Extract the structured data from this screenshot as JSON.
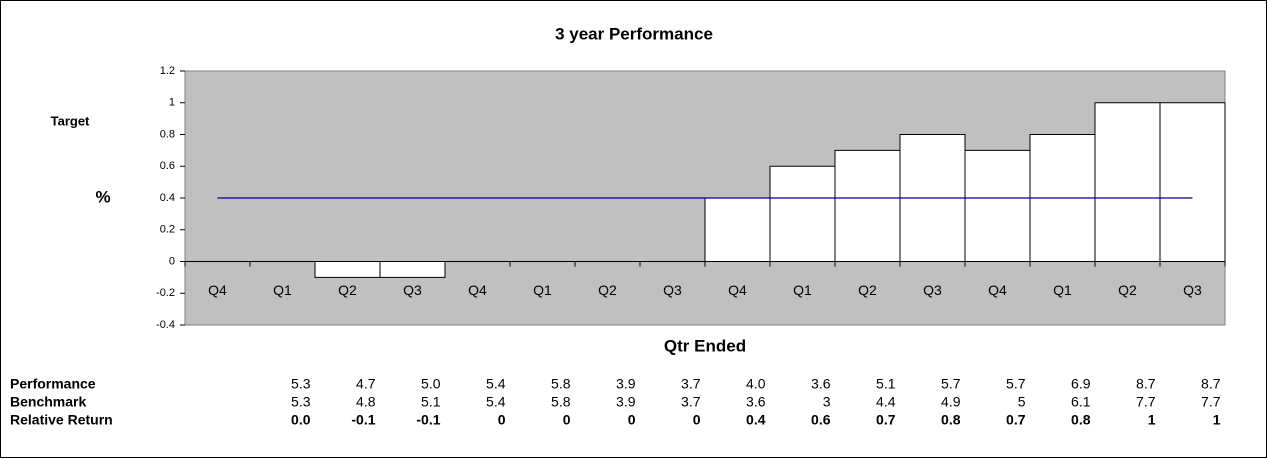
{
  "chart_data": {
    "type": "bar",
    "title": "3 year Performance",
    "ylabel": "%",
    "xlabel": "Qtr Ended",
    "categories": [
      "Q4",
      "Q1",
      "Q2",
      "Q3",
      "Q4",
      "Q1",
      "Q2",
      "Q3",
      "Q4",
      "Q1",
      "Q2",
      "Q3",
      "Q4",
      "Q1",
      "Q2",
      "Q3"
    ],
    "series": [
      {
        "color": "#ffffff",
        "values": [
          null,
          0,
          -0.1,
          -0.1,
          0,
          0,
          0,
          0,
          0.4,
          0.6,
          0.7,
          0.8,
          0.7,
          0.8,
          1,
          1
        ]
      },
      {
        "name": "Target",
        "type": "line",
        "color": "#00008b",
        "values": [
          0.4,
          0.4,
          0.4,
          0.4,
          0.4,
          0.4,
          0.4,
          0.4,
          0.4,
          0.4,
          0.4,
          0.4,
          0.4,
          0.4,
          0.4,
          0.4
        ]
      }
    ],
    "ylim": [
      -0.4,
      1.2
    ],
    "yticks": [
      -0.4,
      -0.2,
      0,
      0.2,
      0.4,
      0.6,
      0.8,
      1,
      1.2
    ],
    "plot_background": "#c0c0c0",
    "grid": false
  },
  "table": {
    "rows": [
      {
        "label": "Performance",
        "values": [
          "5.3",
          "4.7",
          "5.0",
          "5.4",
          "5.8",
          "3.9",
          "3.7",
          "4.0",
          "3.6",
          "5.1",
          "5.7",
          "5.7",
          "6.9",
          "8.7",
          "8.7"
        ]
      },
      {
        "label": "Benchmark",
        "values": [
          "5.3",
          "4.8",
          "5.1",
          "5.4",
          "5.8",
          "3.9",
          "3.7",
          "3.6",
          "3",
          "4.4",
          "4.9",
          "5",
          "6.1",
          "7.7",
          "7.7"
        ]
      },
      {
        "label": "Relative Return",
        "values": [
          "0.0",
          "-0.1",
          "-0.1",
          "0",
          "0",
          "0",
          "0",
          "0.4",
          "0.6",
          "0.7",
          "0.8",
          "0.7",
          "0.8",
          "1",
          "1"
        ]
      }
    ]
  }
}
